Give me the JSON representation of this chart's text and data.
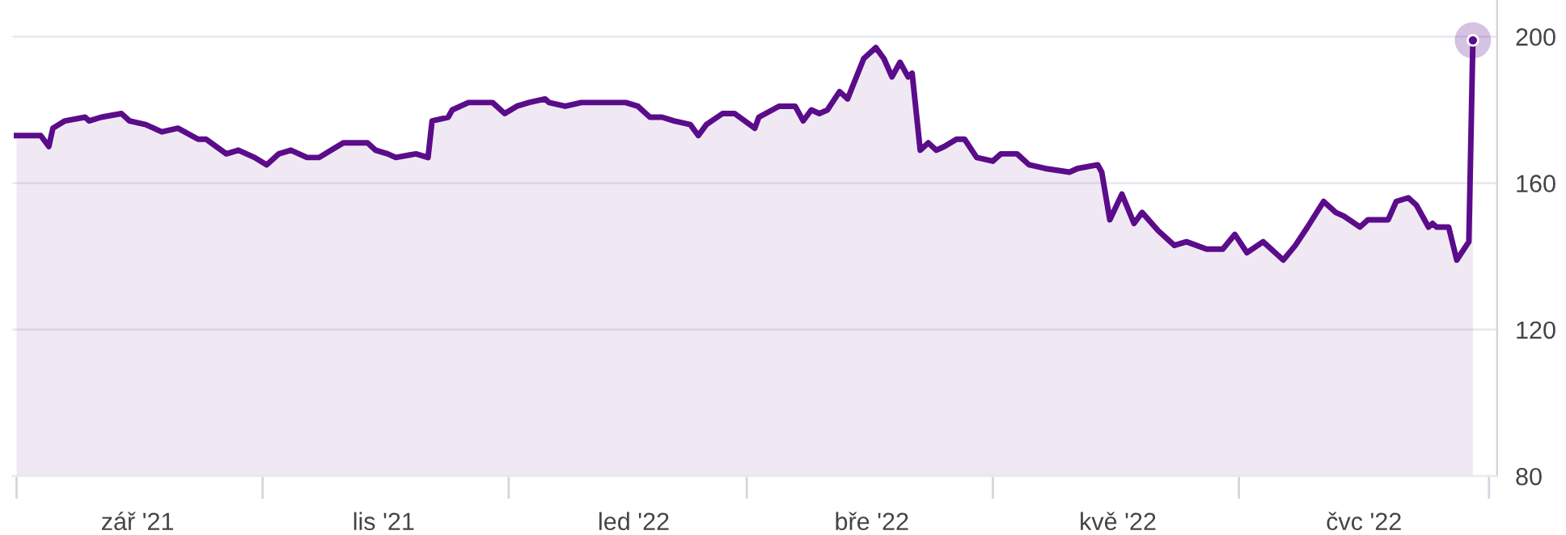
{
  "chart_data": {
    "type": "area",
    "xlim": [
      "2021-08-31",
      "2022-09-03"
    ],
    "xticks": [
      {
        "value": "2021-09-01",
        "label": null
      },
      {
        "value": "2021-10-01",
        "label": "zář '21"
      },
      {
        "value": "2021-11-01",
        "label": null
      },
      {
        "value": "2021-12-01",
        "label": "lis '21"
      },
      {
        "value": "2022-01-01",
        "label": null
      },
      {
        "value": "2022-02-01",
        "label": "led '22"
      },
      {
        "value": "2022-03-01",
        "label": null
      },
      {
        "value": "2022-04-01",
        "label": "bře '22"
      },
      {
        "value": "2022-05-01",
        "label": null
      },
      {
        "value": "2022-06-01",
        "label": "kvě '22"
      },
      {
        "value": "2022-07-01",
        "label": null
      },
      {
        "value": "2022-08-01",
        "label": "čvc '22"
      },
      {
        "value": "2022-09-01",
        "label": null
      }
    ],
    "ylim": [
      80,
      210
    ],
    "yticks": [
      80,
      120,
      160,
      200
    ],
    "grid": "y",
    "legend": false,
    "series": [
      {
        "color": "#5a0c8a",
        "x": [
          "2021-09-01",
          "2021-09-07",
          "2021-09-09",
          "2021-09-10",
          "2021-09-13",
          "2021-09-18",
          "2021-09-19",
          "2021-09-22",
          "2021-09-27",
          "2021-09-29",
          "2021-10-03",
          "2021-10-07",
          "2021-10-11",
          "2021-10-16",
          "2021-10-18",
          "2021-10-23",
          "2021-10-26",
          "2021-10-30",
          "2021-11-02",
          "2021-11-05",
          "2021-11-08",
          "2021-11-12",
          "2021-11-15",
          "2021-11-18",
          "2021-11-21",
          "2021-11-27",
          "2021-11-29",
          "2021-12-02",
          "2021-12-04",
          "2021-12-09",
          "2021-12-12",
          "2021-12-13",
          "2021-12-17",
          "2021-12-18",
          "2021-12-22",
          "2021-12-28",
          "2021-12-31",
          "2022-01-03",
          "2022-01-06",
          "2022-01-10",
          "2022-01-11",
          "2022-01-15",
          "2022-01-19",
          "2022-01-24",
          "2022-01-30",
          "2022-02-02",
          "2022-02-05",
          "2022-02-08",
          "2022-02-11",
          "2022-02-15",
          "2022-02-17",
          "2022-02-19",
          "2022-02-23",
          "2022-02-26",
          "2022-03-03",
          "2022-03-04",
          "2022-03-09",
          "2022-03-13",
          "2022-03-15",
          "2022-03-17",
          "2022-03-19",
          "2022-03-21",
          "2022-03-24",
          "2022-03-26",
          "2022-03-30",
          "2022-04-02",
          "2022-04-04",
          "2022-04-06",
          "2022-04-08",
          "2022-04-10",
          "2022-04-11",
          "2022-04-13",
          "2022-04-15",
          "2022-04-17",
          "2022-04-19",
          "2022-04-22",
          "2022-04-24",
          "2022-04-27",
          "2022-05-01",
          "2022-05-03",
          "2022-05-07",
          "2022-05-10",
          "2022-05-14",
          "2022-05-20",
          "2022-05-22",
          "2022-05-27",
          "2022-05-28",
          "2022-05-30",
          "2022-06-02",
          "2022-06-05",
          "2022-06-07",
          "2022-06-11",
          "2022-06-15",
          "2022-06-18",
          "2022-06-23",
          "2022-06-27",
          "2022-06-30",
          "2022-07-03",
          "2022-07-07",
          "2022-07-12",
          "2022-07-15",
          "2022-07-18",
          "2022-07-22",
          "2022-07-25",
          "2022-07-27",
          "2022-07-31",
          "2022-08-02",
          "2022-08-07",
          "2022-08-09",
          "2022-08-12",
          "2022-08-14",
          "2022-08-17",
          "2022-08-18",
          "2022-08-19",
          "2022-08-22",
          "2022-08-24",
          "2022-08-27",
          "2022-08-28"
        ],
        "values": [
          173,
          173,
          170,
          175,
          177,
          178,
          177,
          178,
          179,
          177,
          176,
          174,
          175,
          172,
          172,
          168,
          169,
          167,
          165,
          168,
          169,
          167,
          167,
          169,
          171,
          171,
          169,
          168,
          167,
          168,
          167,
          177,
          178,
          180,
          182,
          182,
          179,
          181,
          182,
          183,
          182,
          181,
          182,
          182,
          182,
          181,
          178,
          178,
          177,
          176,
          173,
          176,
          179,
          179,
          175,
          178,
          181,
          181,
          177,
          180,
          179,
          180,
          185,
          183,
          194,
          197,
          194,
          189,
          193,
          189,
          190,
          169,
          171,
          169,
          170,
          172,
          172,
          167,
          166,
          168,
          168,
          165,
          164,
          163,
          164,
          165,
          163,
          150,
          157,
          149,
          152,
          147,
          143,
          144,
          142,
          142,
          146,
          141,
          144,
          139,
          143,
          148,
          155,
          152,
          151,
          148,
          150,
          150,
          155,
          156,
          154,
          148,
          149,
          148,
          148,
          139,
          144,
          199
        ]
      },
      {
        "type": "scatter",
        "color": "#5a0c8a",
        "x": [
          "2022-08-28"
        ],
        "values": [
          199
        ]
      }
    ]
  }
}
